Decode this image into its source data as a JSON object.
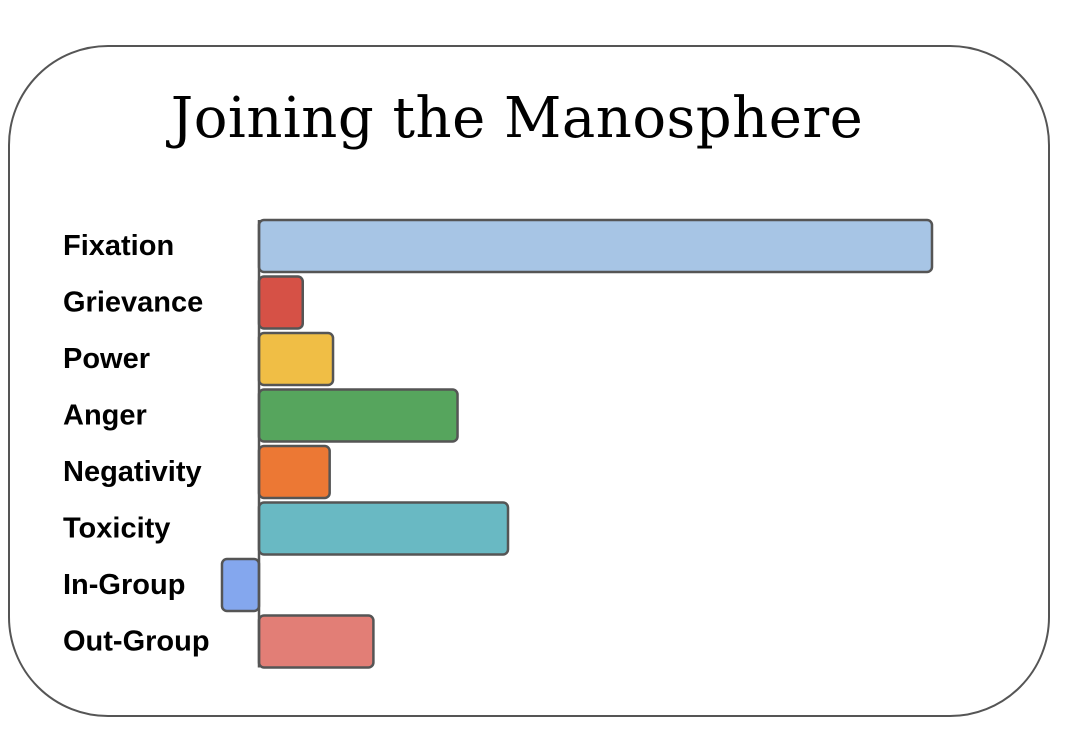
{
  "chart_data": {
    "type": "bar",
    "orientation": "horizontal",
    "title": "Joining the Manosphere",
    "xlabel": "",
    "ylabel": "",
    "categories": [
      "Fixation",
      "Grievance",
      "Power",
      "Anger",
      "Negativity",
      "Toxicity",
      "In-Group",
      "Out-Group"
    ],
    "values": [
      1.0,
      0.065,
      0.11,
      0.295,
      0.105,
      0.37,
      -0.055,
      0.17
    ],
    "xlim": [
      -0.3,
      1.0
    ],
    "colors": [
      "#a7c5e5",
      "#d65146",
      "#f0be45",
      "#56a55d",
      "#ec7834",
      "#69b9c3",
      "#84a7ee",
      "#e27e76"
    ],
    "grid": false,
    "legend": "none"
  }
}
